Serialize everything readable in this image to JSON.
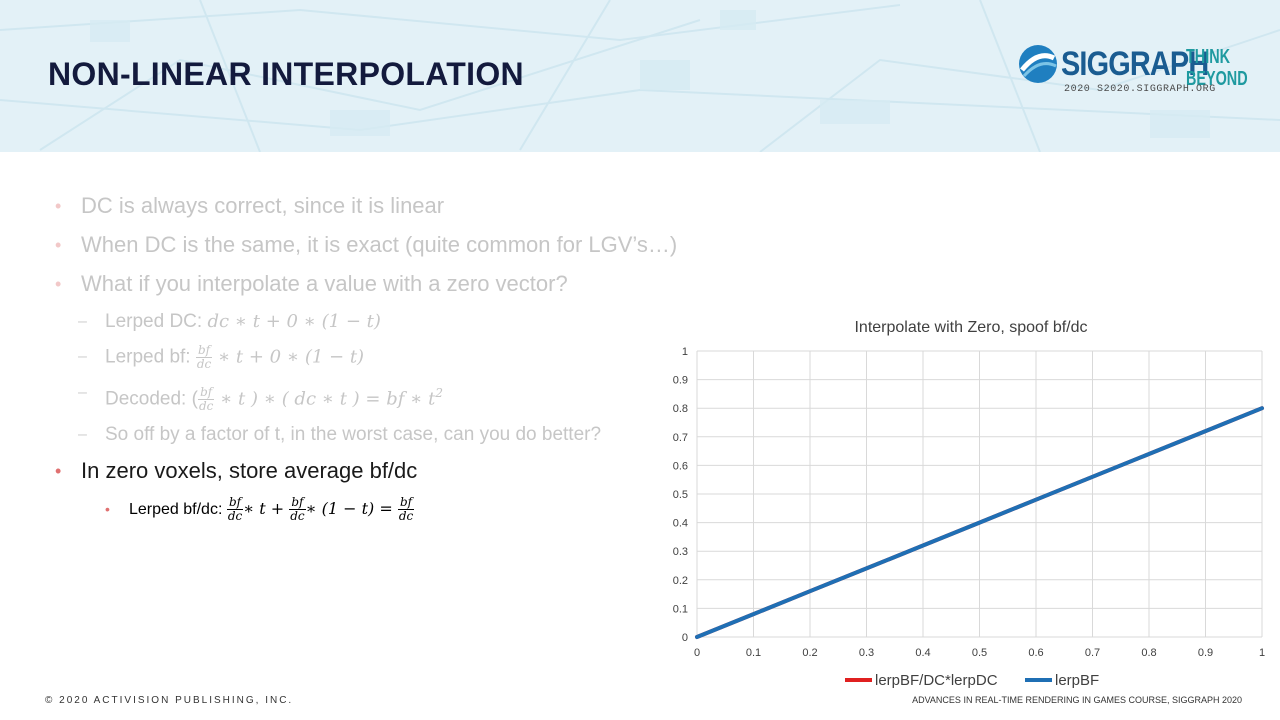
{
  "slide": {
    "title": "NON-LINEAR INTERPOLATION"
  },
  "logo": {
    "word": "SIGGRAPH",
    "tagline_1": "THINK",
    "tagline_2": "BEYOND",
    "sub": "2020  S2020.SIGGRAPH.ORG"
  },
  "bullets": {
    "b1": "DC is always correct, since it is linear",
    "b2": "When DC is the same, it is exact (quite common for LGV’s…)",
    "b3": "What if you interpolate a value with a zero vector?",
    "s1_label": "Lerped DC: ",
    "s1_math": "dc ∗ t + 0 ∗ (1 − t)",
    "s2_label": "Lerped bf: ",
    "s2_math": " ∗ t + 0 ∗ (1 − t)",
    "s3_label": "Decoded: (",
    "s3_math_a": " ∗ t ) ∗ ( dc ∗ t ) = ",
    "s3_math_b": "bf ∗ t",
    "s3_sup": "2",
    "s4": "So off by a factor of t, in the worst case, can you do better?",
    "b4": "In zero voxels, store average bf/dc",
    "t1_label": "Lerped bf/dc: ",
    "t1_math_a": "∗ t + ",
    "t1_math_b": "∗ (1 − t) = ",
    "frac_num": "bf",
    "frac_den": "dc"
  },
  "chart_data": {
    "type": "line",
    "title": "Interpolate with Zero, spoof bf/dc",
    "xlabel": "",
    "ylabel": "",
    "xlim": [
      0,
      1
    ],
    "ylim": [
      0,
      1
    ],
    "x_ticks": [
      "0",
      "0.1",
      "0.2",
      "0.3",
      "0.4",
      "0.5",
      "0.6",
      "0.7",
      "0.8",
      "0.9",
      "1"
    ],
    "y_ticks": [
      "0",
      "0.1",
      "0.2",
      "0.3",
      "0.4",
      "0.5",
      "0.6",
      "0.7",
      "0.8",
      "0.9",
      "1"
    ],
    "grid": true,
    "legend_position": "bottom",
    "series": [
      {
        "name": "lerpBF/DC*lerpDC",
        "color": "#e02020",
        "x": [
          0,
          0.1,
          0.2,
          0.3,
          0.4,
          0.5,
          0.6,
          0.7,
          0.8,
          0.9,
          1
        ],
        "y": [
          0,
          0.08,
          0.16,
          0.24,
          0.32,
          0.4,
          0.48,
          0.56,
          0.64,
          0.72,
          0.8
        ]
      },
      {
        "name": "lerpBF",
        "color": "#1f6fb4",
        "x": [
          0,
          0.1,
          0.2,
          0.3,
          0.4,
          0.5,
          0.6,
          0.7,
          0.8,
          0.9,
          1
        ],
        "y": [
          0,
          0.08,
          0.16,
          0.24,
          0.32,
          0.4,
          0.48,
          0.56,
          0.64,
          0.72,
          0.8
        ]
      }
    ]
  },
  "footer": {
    "left": "© 2020 ACTIVISION PUBLISHING, INC.",
    "right": "ADVANCES IN REAL-TIME RENDERING IN GAMES COURSE, SIGGRAPH 2020"
  }
}
